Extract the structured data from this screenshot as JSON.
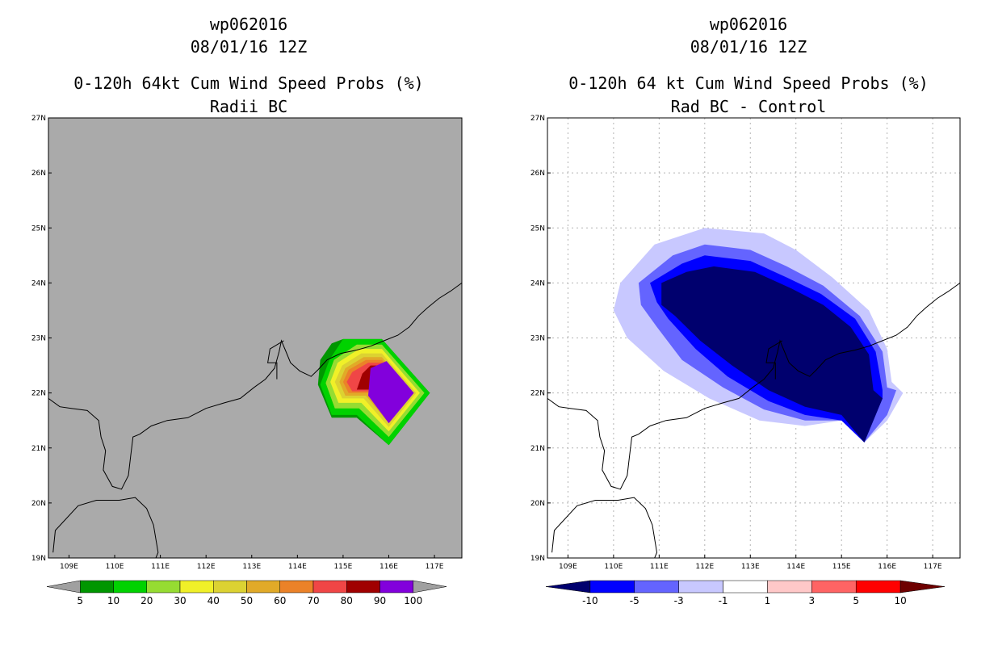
{
  "chart_data": [
    {
      "type": "heatmap",
      "subtype": "filled-contour-map",
      "title_lines": [
        "wp062016",
        "08/01/16 12Z",
        "0-120h 64kt Cum Wind Speed Probs (%)",
        "Radii BC"
      ],
      "x_ticks": [
        "109E",
        "110E",
        "111E",
        "112E",
        "113E",
        "114E",
        "115E",
        "116E",
        "117E"
      ],
      "y_ticks": [
        "19N",
        "20N",
        "21N",
        "22N",
        "23N",
        "24N",
        "25N",
        "26N",
        "27N"
      ],
      "xlim": [
        108.55,
        117.6
      ],
      "ylim": [
        19,
        27
      ],
      "background": "#aaaaaa",
      "colorbar": {
        "labels": [
          "5",
          "10",
          "20",
          "30",
          "40",
          "50",
          "60",
          "70",
          "80",
          "90",
          "100"
        ],
        "colors": [
          "#009600",
          "#00d200",
          "#96dc32",
          "#f0f028",
          "#dcd232",
          "#e1aa28",
          "#eb8228",
          "#f04646",
          "#a00000",
          "#8200dc"
        ],
        "under_color": "#a0a0a0",
        "over_color": "#a0a0a0"
      },
      "contours": [
        {
          "level": 5,
          "color": "#009600",
          "pts": [
            [
              114.5,
              22.6
            ],
            [
              114.75,
              22.9
            ],
            [
              115,
              22.98
            ],
            [
              115.85,
              22.98
            ],
            [
              116.9,
              22.0
            ],
            [
              116.0,
              21.05
            ],
            [
              115.3,
              21.55
            ],
            [
              114.75,
              21.55
            ],
            [
              114.45,
              22.15
            ]
          ]
        },
        {
          "level": 10,
          "color": "#00d200",
          "pts": [
            [
              114.7,
              22.6
            ],
            [
              115,
              22.98
            ],
            [
              115.85,
              22.98
            ],
            [
              116.9,
              22.0
            ],
            [
              116.0,
              21.05
            ],
            [
              115.3,
              21.6
            ],
            [
              114.75,
              21.6
            ],
            [
              114.5,
              22.15
            ]
          ]
        },
        {
          "level": 20,
          "color": "#96dc32",
          "pts": [
            [
              114.8,
              22.6
            ],
            [
              115.3,
              22.88
            ],
            [
              115.85,
              22.88
            ],
            [
              116.78,
              22.0
            ],
            [
              116.0,
              21.2
            ],
            [
              115.35,
              21.72
            ],
            [
              114.82,
              21.72
            ],
            [
              114.62,
              22.18
            ]
          ]
        },
        {
          "level": 30,
          "color": "#f0f028",
          "pts": [
            [
              114.88,
              22.55
            ],
            [
              115.35,
              22.8
            ],
            [
              115.85,
              22.8
            ],
            [
              116.68,
              22.0
            ],
            [
              116.0,
              21.3
            ],
            [
              115.4,
              21.82
            ],
            [
              114.9,
              21.82
            ],
            [
              114.72,
              22.2
            ]
          ]
        },
        {
          "level": 40,
          "color": "#dcd232",
          "pts": [
            [
              114.98,
              22.5
            ],
            [
              115.4,
              22.72
            ],
            [
              115.85,
              22.72
            ],
            [
              116.6,
              22.0
            ],
            [
              116.0,
              21.38
            ],
            [
              115.45,
              21.9
            ],
            [
              114.98,
              21.9
            ],
            [
              114.82,
              22.2
            ]
          ]
        },
        {
          "level": 50,
          "color": "#e1aa28",
          "pts": [
            [
              115.05,
              22.45
            ],
            [
              115.45,
              22.65
            ],
            [
              115.85,
              22.65
            ],
            [
              116.52,
              22.0
            ],
            [
              116.0,
              21.45
            ],
            [
              115.5,
              21.95
            ],
            [
              115.05,
              21.95
            ],
            [
              114.92,
              22.2
            ]
          ]
        },
        {
          "level": 60,
          "color": "#eb8228",
          "pts": [
            [
              115.12,
              22.42
            ],
            [
              115.5,
              22.6
            ],
            [
              115.85,
              22.6
            ],
            [
              116.45,
              22.0
            ],
            [
              116.0,
              21.5
            ],
            [
              115.55,
              22.0
            ],
            [
              115.12,
              22.0
            ],
            [
              115.0,
              22.2
            ]
          ]
        },
        {
          "level": 70,
          "color": "#f04646",
          "pts": [
            [
              115.2,
              22.38
            ],
            [
              115.55,
              22.55
            ],
            [
              115.85,
              22.55
            ],
            [
              116.38,
              22.0
            ],
            [
              116.0,
              21.55
            ],
            [
              115.6,
              22.03
            ],
            [
              115.2,
              22.03
            ],
            [
              115.08,
              22.2
            ]
          ]
        },
        {
          "level": 80,
          "color": "#a00000",
          "pts": [
            [
              115.42,
              22.35
            ],
            [
              115.6,
              22.5
            ],
            [
              115.82,
              22.5
            ],
            [
              116.3,
              22.0
            ],
            [
              116.0,
              21.6
            ],
            [
              115.65,
              22.06
            ],
            [
              115.3,
              22.06
            ]
          ]
        },
        {
          "level": 100,
          "color": "#8200dc",
          "pts": [
            [
              115.6,
              22.45
            ],
            [
              115.95,
              22.58
            ],
            [
              116.55,
              22.0
            ],
            [
              116.0,
              21.45
            ],
            [
              115.55,
              21.95
            ]
          ]
        }
      ]
    },
    {
      "type": "heatmap",
      "subtype": "filled-contour-map",
      "title_lines": [
        "wp062016",
        "08/01/16 12Z",
        "0-120h 64 kt Cum Wind Speed Probs (%)",
        "Rad BC - Control"
      ],
      "x_ticks": [
        "109E",
        "110E",
        "111E",
        "112E",
        "113E",
        "114E",
        "115E",
        "116E",
        "117E"
      ],
      "y_ticks": [
        "19N",
        "20N",
        "21N",
        "22N",
        "23N",
        "24N",
        "25N",
        "26N",
        "27N"
      ],
      "xlim": [
        108.55,
        117.6
      ],
      "ylim": [
        19,
        27
      ],
      "background": "#ffffff",
      "grid": true,
      "colorbar": {
        "labels": [
          "-10",
          "-5",
          "-3",
          "-1",
          "1",
          "3",
          "5",
          "10"
        ],
        "colors": [
          "#0000ff",
          "#6464ff",
          "#c8c8ff",
          "#ffffff",
          "#ffc8c8",
          "#ff6464",
          "#ff0000"
        ],
        "under_color": "#00006e",
        "over_color": "#6e0000"
      },
      "contours": [
        {
          "level": -1,
          "color": "#c8c8ff",
          "pts": [
            [
              110.0,
              23.5
            ],
            [
              110.15,
              24.0
            ],
            [
              110.9,
              24.7
            ],
            [
              112.0,
              25.0
            ],
            [
              113.3,
              24.9
            ],
            [
              114.0,
              24.6
            ],
            [
              114.8,
              24.1
            ],
            [
              115.6,
              23.5
            ],
            [
              116.0,
              22.8
            ],
            [
              116.1,
              22.2
            ],
            [
              116.35,
              22.0
            ],
            [
              116.0,
              21.5
            ],
            [
              115.5,
              21.1
            ],
            [
              115.0,
              21.5
            ],
            [
              114.2,
              21.4
            ],
            [
              113.2,
              21.5
            ],
            [
              112.1,
              21.9
            ],
            [
              111.1,
              22.4
            ],
            [
              110.3,
              23.0
            ]
          ]
        },
        {
          "level": -3,
          "color": "#6464ff",
          "pts": [
            [
              110.6,
              23.6
            ],
            [
              110.55,
              24.0
            ],
            [
              111.3,
              24.5
            ],
            [
              112.0,
              24.7
            ],
            [
              113.0,
              24.6
            ],
            [
              113.8,
              24.3
            ],
            [
              114.6,
              23.95
            ],
            [
              115.4,
              23.4
            ],
            [
              115.9,
              22.75
            ],
            [
              116.0,
              22.1
            ],
            [
              116.2,
              22.05
            ],
            [
              116.0,
              21.6
            ],
            [
              115.5,
              21.1
            ],
            [
              115.0,
              21.5
            ],
            [
              114.2,
              21.5
            ],
            [
              113.3,
              21.7
            ],
            [
              112.4,
              22.1
            ],
            [
              111.5,
              22.6
            ],
            [
              110.95,
              23.2
            ]
          ]
        },
        {
          "level": -5,
          "color": "#0000ff",
          "pts": [
            [
              110.95,
              23.65
            ],
            [
              110.8,
              24.0
            ],
            [
              111.5,
              24.35
            ],
            [
              112.0,
              24.5
            ],
            [
              113.0,
              24.4
            ],
            [
              113.8,
              24.1
            ],
            [
              114.55,
              23.8
            ],
            [
              115.3,
              23.35
            ],
            [
              115.75,
              22.75
            ],
            [
              115.9,
              22.05
            ],
            [
              115.9,
              21.9
            ],
            [
              115.5,
              21.1
            ],
            [
              115.0,
              21.5
            ],
            [
              114.2,
              21.6
            ],
            [
              113.4,
              21.85
            ],
            [
              112.5,
              22.3
            ],
            [
              111.8,
              22.8
            ],
            [
              111.2,
              23.35
            ]
          ]
        },
        {
          "level": -10,
          "color": "#00006e",
          "pts": [
            [
              111.05,
              23.6
            ],
            [
              111.05,
              24.0
            ],
            [
              111.6,
              24.2
            ],
            [
              112.2,
              24.3
            ],
            [
              113.1,
              24.2
            ],
            [
              113.9,
              23.9
            ],
            [
              114.6,
              23.6
            ],
            [
              115.2,
              23.2
            ],
            [
              115.6,
              22.7
            ],
            [
              115.7,
              22.05
            ],
            [
              115.9,
              21.9
            ],
            [
              115.5,
              21.1
            ],
            [
              115.0,
              21.6
            ],
            [
              114.2,
              21.75
            ],
            [
              113.4,
              22.05
            ],
            [
              112.6,
              22.5
            ],
            [
              111.9,
              22.95
            ],
            [
              111.35,
              23.4
            ]
          ]
        }
      ]
    }
  ]
}
